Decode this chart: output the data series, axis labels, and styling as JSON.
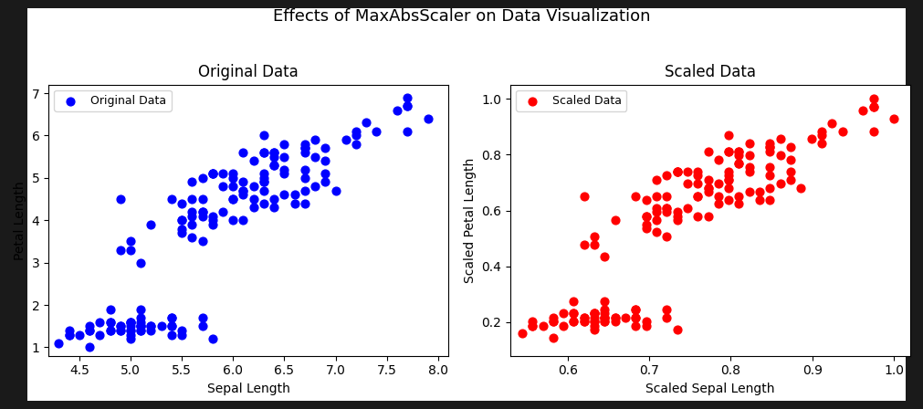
{
  "title": "Effects of MaxAbsScaler on Data Visualization",
  "left_title": "Original Data",
  "right_title": "Scaled Data",
  "xlabel_left": "Sepal Length",
  "ylabel_left": "Petal Length",
  "xlabel_right": "Scaled Sepal Length",
  "ylabel_right": "Scaled Petal Length",
  "legend_label_left": "Original Data",
  "legend_label_right": "Scaled Data",
  "dot_color_left": "blue",
  "dot_color_right": "red",
  "dot_size": 40,
  "plot_background": "#ffffff",
  "fig_background": "#ffffff",
  "outer_background": "#1a1a1a",
  "title_fontsize": 13,
  "subtitle_fontsize": 12,
  "axis_label_fontsize": 10,
  "legend_fontsize": 9,
  "left_xlim": [
    4.2,
    8.1
  ],
  "left_ylim": [
    0.8,
    7.2
  ],
  "right_xlim": [
    0.53,
    1.02
  ],
  "right_ylim": [
    0.08,
    1.05
  ]
}
